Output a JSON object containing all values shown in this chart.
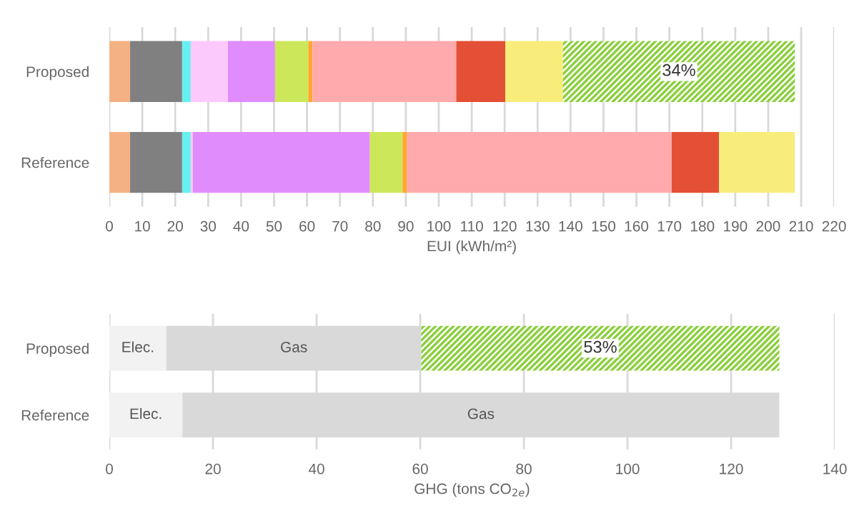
{
  "chart_data": [
    {
      "type": "bar",
      "orientation": "horizontal",
      "stacked": true,
      "categories": [
        "Proposed",
        "Reference"
      ],
      "xlabel": "EUI (kWh/m²)",
      "xlim": [
        0,
        220
      ],
      "xticks": [
        0,
        10,
        20,
        30,
        40,
        50,
        60,
        70,
        80,
        90,
        100,
        110,
        120,
        130,
        140,
        150,
        160,
        170,
        180,
        190,
        200,
        210,
        220
      ],
      "grid": "x",
      "legend": false,
      "annotations": [
        "34%"
      ],
      "series": [
        {
          "color": "#f4b183",
          "values": [
            6.3,
            6.3
          ]
        },
        {
          "color": "#808080",
          "values": [
            15.8,
            15.8
          ]
        },
        {
          "color": "#66f0f0",
          "values": [
            2.6,
            2.6
          ]
        },
        {
          "color": "#fcc9fc",
          "values": [
            11.3,
            0.6
          ]
        },
        {
          "color": "#e18cfc",
          "values": [
            14.3,
            53.8
          ]
        },
        {
          "color": "#cce85a",
          "values": [
            10.1,
            9.9
          ]
        },
        {
          "color": "#ffa733",
          "values": [
            1.3,
            1.4
          ]
        },
        {
          "color": "#ffaaad",
          "values": [
            43.6,
            80.3
          ]
        },
        {
          "color": "#e45035",
          "values": [
            14.9,
            14.4
          ]
        },
        {
          "color": "#f8ed7b",
          "values": [
            17.5,
            23.0
          ]
        },
        {
          "color": "#8ccf3f",
          "values": [
            70.4,
            null
          ]
        }
      ]
    },
    {
      "type": "bar",
      "orientation": "horizontal",
      "stacked": true,
      "categories": [
        "Proposed",
        "Reference"
      ],
      "xlabel": "GHG (tons CO$_{2e}$)",
      "xlim": [
        0,
        140
      ],
      "xticks": [
        0,
        20,
        40,
        60,
        80,
        100,
        120,
        140
      ],
      "grid": "x",
      "legend": false,
      "annotations": [
        "53%"
      ],
      "series": [
        {
          "name": "Elec.",
          "color": "#f2f2f2",
          "values": [
            11.0,
            14.1
          ]
        },
        {
          "name": "Gas",
          "color": "#d9d9d9",
          "values": [
            49.2,
            115.2
          ]
        },
        {
          "color": "#8ccf3f",
          "values": [
            69.1,
            null
          ]
        }
      ]
    }
  ]
}
